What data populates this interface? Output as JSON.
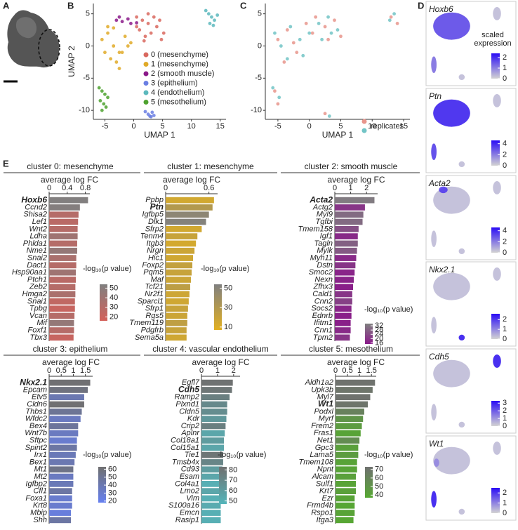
{
  "panel_labels": [
    "A",
    "B",
    "C",
    "D",
    "E"
  ],
  "chart_data": [
    {
      "type": "scatter",
      "xlabel": "UMAP 1",
      "ylabel": "UMAP 2",
      "xlim": [
        -7,
        16
      ],
      "ylim": [
        -11.4,
        6.6
      ],
      "xticks": [
        -5,
        0,
        5,
        10,
        15
      ],
      "yticks": [
        5,
        0,
        -5,
        -10
      ],
      "series": [
        {
          "name": "0 (mesenchyme)",
          "color": "#d9695f",
          "x": [
            0.5,
            1.5,
            2.5,
            3.5,
            4.5,
            5.2,
            1,
            2,
            3,
            4,
            0.5,
            2.5,
            4.8,
            1.8
          ],
          "y": [
            4.5,
            4,
            3.5,
            4.5,
            4,
            2,
            2.5,
            1.5,
            2,
            3,
            3,
            5,
            1,
            0.8
          ]
        },
        {
          "name": "1 (mesenchyme)",
          "color": "#e0aa28",
          "x": [
            -5.5,
            -4.5,
            -3.5,
            -2.5,
            -1.5,
            -0.5,
            -4,
            -3,
            -2,
            -1,
            -4.5,
            -3.5,
            -2.5,
            -5
          ],
          "y": [
            1,
            2,
            0,
            -1,
            1.5,
            0.5,
            -2,
            -2.5,
            -1,
            0,
            3,
            2.8,
            -3.5,
            -1
          ]
        },
        {
          "name": "2 (smooth muscle)",
          "color": "#8b1a89",
          "x": [
            -3,
            -2.5,
            -2,
            -1,
            -0.5,
            0.5
          ],
          "y": [
            4,
            4.5,
            3.8,
            4.2,
            3.5,
            3.6
          ]
        },
        {
          "name": "3 (epithelium)",
          "color": "#6b7fe3",
          "x": [
            2,
            2.5,
            3,
            3.5,
            2.8,
            3.2
          ],
          "y": [
            -10.2,
            -10.6,
            -11,
            -10.8,
            -10.9,
            -10.3
          ]
        },
        {
          "name": "4 (endothelium)",
          "color": "#5cb9bd",
          "x": [
            12.5,
            13,
            13.5,
            14,
            13.2,
            14.5,
            13.8
          ],
          "y": [
            5.5,
            5,
            4.5,
            4,
            3.5,
            4.8,
            3.2
          ]
        },
        {
          "name": "5 (mesothelium)",
          "color": "#4ea22f",
          "x": [
            -6,
            -5.5,
            -5,
            -4.5,
            -5.8,
            -5.2,
            -4.8,
            -5.5
          ],
          "y": [
            -6.5,
            -7,
            -7.5,
            -8,
            -8.5,
            -9,
            -9.5,
            -10
          ]
        }
      ]
    },
    {
      "type": "scatter",
      "xlabel": "UMAP 1",
      "xlim": [
        -7,
        16
      ],
      "ylim": [
        -11.4,
        6.6
      ],
      "xticks": [
        -5,
        0,
        5,
        10,
        15
      ],
      "yticks": [
        5,
        0,
        -5,
        -10
      ],
      "legend_title": "replicates",
      "series": [
        {
          "color": "#e8958c",
          "x": [
            -5,
            -3.5,
            -2,
            -0.5,
            1,
            2.5,
            4,
            5,
            -4,
            -2.5,
            0.5,
            3,
            13,
            14,
            2.5,
            -5.5,
            -5
          ],
          "y": [
            1,
            2.5,
            -1,
            3.5,
            4.5,
            3,
            4,
            1.5,
            -2.5,
            0.5,
            2,
            1,
            4.5,
            3.5,
            -10.5,
            -7,
            -9
          ]
        },
        {
          "color": "#72c4c6",
          "x": [
            -4.5,
            -3,
            -1.5,
            0,
            1.5,
            3,
            4.5,
            -5.5,
            -3.5,
            -1,
            2,
            3.5,
            13.5,
            12.8,
            3.2,
            -4.8,
            -5.8
          ],
          "y": [
            0,
            3,
            1,
            2,
            3.5,
            4.5,
            2.5,
            2,
            -2,
            -1.5,
            1,
            2,
            5,
            4,
            -10.9,
            -8,
            -6.5
          ]
        }
      ]
    },
    {
      "type": "bar",
      "title": "cluster 0: mesenchyme",
      "xlabel": "average log FC",
      "colorbar_title": "-log₁₀(p value)",
      "categories": [
        "Hoxb6",
        "Ccnd2",
        "Shisa2",
        "Lef1",
        "Wnt2",
        "Ldha",
        "Phlda1",
        "Nme1",
        "Snai2",
        "Dact1",
        "Hsp90aa1",
        "Ptch1",
        "Zeb2",
        "Hmga2",
        "Snai1",
        "Tpbg",
        "Vcan",
        "Mif",
        "Foxf1",
        "Tbx3"
      ],
      "values": [
        0.86,
        0.68,
        0.65,
        0.64,
        0.63,
        0.63,
        0.62,
        0.62,
        0.6,
        0.6,
        0.59,
        0.59,
        0.58,
        0.58,
        0.57,
        0.57,
        0.56,
        0.55,
        0.55,
        0.54
      ],
      "pvalues": [
        53,
        52,
        30,
        28,
        30,
        40,
        30,
        45,
        35,
        30,
        40,
        28,
        30,
        35,
        25,
        22,
        30,
        45,
        30,
        22
      ],
      "bold_index": 0,
      "xlim": [
        0,
        0.9
      ],
      "xticks": [
        0,
        0.4,
        0.8
      ],
      "clim": [
        16,
        54
      ],
      "cticks": [
        50,
        40,
        30,
        20
      ],
      "color": "#d4605a",
      "color_high": "#808080"
    },
    {
      "type": "bar",
      "title": "cluster 1: mesenchyme",
      "xlabel": "average log FC",
      "colorbar_title": "-log₁₀(p value)",
      "categories": [
        "Ppbp",
        "Ptn",
        "Igfbp5",
        "Dlk1",
        "Sfrp2",
        "Tenm4",
        "Itgb3",
        "Nrgn",
        "Hic1",
        "Foxp2",
        "Pqm5",
        "Maf",
        "Tcf21",
        "Nr2f1",
        "Sparcl1",
        "Sfrp1",
        "Rgs5",
        "Tmem119",
        "Pdgfrb",
        "Sema5a"
      ],
      "values": [
        0.67,
        0.65,
        0.6,
        0.56,
        0.5,
        0.44,
        0.42,
        0.4,
        0.38,
        0.37,
        0.36,
        0.35,
        0.34,
        0.33,
        0.32,
        0.31,
        0.3,
        0.3,
        0.29,
        0.29
      ],
      "pvalues": [
        15,
        30,
        48,
        52,
        15,
        20,
        14,
        18,
        16,
        22,
        20,
        18,
        25,
        17,
        16,
        20,
        18,
        24,
        20,
        16
      ],
      "bold_index": 1,
      "xlim": [
        0,
        0.72
      ],
      "xticks": [
        0,
        0.6
      ],
      "clim": [
        7,
        54
      ],
      "cticks": [
        50,
        30,
        10
      ],
      "color": "#e2b021",
      "color_high": "#808080"
    },
    {
      "type": "bar",
      "title": "cluster 2: smooth muscle",
      "xlabel": "average log FC",
      "colorbar_title": "-log₁₀(p value)",
      "categories": [
        "Acta2",
        "Actg2",
        "Myl9",
        "Tgfbi",
        "Tmem158",
        "Igf1",
        "Tagln",
        "Mylk",
        "Myh11",
        "Dstn",
        "Smoc2",
        "Nexn",
        "Zfhx3",
        "Cald1",
        "Cnn2",
        "Socs2",
        "Ednrb",
        "Ifitm1",
        "Cnn1",
        "Tpm2"
      ],
      "values": [
        2.5,
        1.9,
        1.8,
        1.75,
        1.5,
        1.45,
        1.45,
        1.4,
        1.35,
        1.3,
        1.25,
        1.2,
        1.15,
        1.1,
        1.1,
        1.05,
        1.05,
        1.0,
        1.0,
        0.95
      ],
      "pvalues": [
        33,
        20,
        30,
        30,
        25,
        18,
        28,
        27,
        18,
        20,
        17,
        17,
        16,
        20,
        22,
        17,
        16,
        16,
        18,
        20
      ],
      "bold_index": 0,
      "xlim": [
        0,
        2.7
      ],
      "xticks": [
        0,
        1,
        2
      ],
      "clim": [
        15,
        34
      ],
      "cticks": [
        32,
        28,
        24,
        20,
        16
      ],
      "color": "#8a1a8a",
      "color_high": "#808080"
    },
    {
      "type": "bar",
      "title": "cluster 3: epithelium",
      "xlabel": "average log FC",
      "colorbar_title": "-log₁₀(p value)",
      "categories": [
        "Nkx2.1",
        "Epcam",
        "Etv5",
        "Cldn6",
        "Thbs1",
        "Wfdc2",
        "Bex4",
        "Wnt7b",
        "Sftpc",
        "Spint2",
        "Irx1",
        "Bex1",
        "Mt1",
        "Mt2",
        "Igfbp2",
        "Cfl1",
        "Foxa1",
        "Krt8",
        "Mbip",
        "Shh"
      ],
      "values": [
        1.7,
        1.6,
        1.45,
        1.45,
        1.35,
        1.3,
        1.2,
        1.2,
        1.15,
        1.15,
        1.1,
        1.05,
        1.0,
        1.0,
        1.0,
        0.95,
        0.95,
        0.95,
        0.9,
        0.9
      ],
      "pvalues": [
        62,
        58,
        40,
        62,
        50,
        35,
        48,
        35,
        30,
        45,
        38,
        40,
        55,
        35,
        38,
        45,
        30,
        30,
        25,
        45
      ],
      "bold_index": 0,
      "xlim": [
        0,
        1.8
      ],
      "xticks": [
        0,
        0.5,
        1,
        1.5
      ],
      "clim": [
        18,
        63
      ],
      "cticks": [
        60,
        50,
        40,
        30,
        20
      ],
      "color": "#6680f0",
      "color_high": "#707070"
    },
    {
      "type": "bar",
      "title": "cluster 4: vascular endothelium",
      "xlabel": "average log FC",
      "colorbar_title": "-log₁₀(p value)",
      "categories": [
        "Egfl7",
        "Cdh5",
        "Ramp2",
        "Plxnd1",
        "Cldn5",
        "Kdr",
        "Crip2",
        "Aplnr",
        "Col18a1",
        "Col15a1",
        "Tie1",
        "Tmsb4x",
        "Cd93",
        "Esam",
        "Col4a1",
        "Lmo2",
        "Vim",
        "S100a16",
        "Emcn",
        "Rasip1"
      ],
      "values": [
        1.95,
        1.9,
        1.75,
        1.6,
        1.6,
        1.55,
        1.5,
        1.45,
        1.4,
        1.4,
        1.35,
        1.35,
        1.3,
        1.3,
        1.3,
        1.25,
        1.25,
        1.2,
        1.2,
        1.2
      ],
      "pvalues": [
        82,
        80,
        75,
        70,
        68,
        62,
        75,
        55,
        60,
        55,
        80,
        72,
        60,
        55,
        50,
        55,
        50,
        52,
        50,
        50
      ],
      "bold_index": 1,
      "xlim": [
        0,
        2.4
      ],
      "xticks": [
        0,
        1,
        2
      ],
      "clim": [
        47,
        83
      ],
      "cticks": [
        80,
        70,
        60,
        50
      ],
      "color": "#55b5ba",
      "color_high": "#707070"
    },
    {
      "type": "bar",
      "title": "cluster 5: mesothelium",
      "xlabel": "average log FC",
      "colorbar_title": "-log₁₀(p value)",
      "categories": [
        "Aldh1a2",
        "Upk3b",
        "Myl7",
        "Wt1",
        "Podxl",
        "Myrf",
        "Frem2",
        "Fras1",
        "Net1",
        "Gpc3",
        "Lama5",
        "Tmem108",
        "Npnt",
        "Alcam",
        "Sulf1",
        "Krt7",
        "Ezr",
        "Frmd4b",
        "Rspo1",
        "Itga3"
      ],
      "values": [
        1.65,
        1.55,
        1.45,
        1.35,
        1.2,
        1.15,
        1.1,
        1.05,
        1.0,
        0.95,
        0.95,
        0.9,
        0.9,
        0.85,
        0.85,
        0.85,
        0.8,
        0.8,
        0.8,
        0.75
      ],
      "pvalues": [
        72,
        70,
        72,
        70,
        62,
        50,
        45,
        40,
        55,
        42,
        45,
        40,
        40,
        42,
        40,
        42,
        40,
        38,
        40,
        38
      ],
      "bold_index": 3,
      "xlim": [
        0,
        1.7
      ],
      "xticks": [
        0,
        0.5,
        1,
        1.5
      ],
      "clim": [
        37,
        73
      ],
      "cticks": [
        70,
        60,
        50,
        40
      ],
      "color": "#56a832",
      "color_high": "#707070"
    },
    {
      "type": "feature",
      "title": "Hoxb6",
      "colorbar_title": "scaled expression",
      "clim": [
        0,
        2.4
      ],
      "cticks": [
        0,
        1,
        2
      ],
      "color_low": "#d3d3d3",
      "color_high": "#2a0cf5"
    },
    {
      "type": "feature",
      "title": "Ptn",
      "clim": [
        0,
        4.6
      ],
      "cticks": [
        0,
        2,
        4
      ],
      "color_low": "#d3d3d3",
      "color_high": "#2a0cf5"
    },
    {
      "type": "feature",
      "title": "Acta2",
      "clim": [
        0,
        4.6
      ],
      "cticks": [
        0,
        2,
        4
      ],
      "color_low": "#d3d3d3",
      "color_high": "#2a0cf5"
    },
    {
      "type": "feature",
      "title": "Nkx2.1",
      "clim": [
        0,
        2.6
      ],
      "cticks": [
        0,
        1,
        2
      ],
      "color_low": "#d3d3d3",
      "color_high": "#2a0cf5"
    },
    {
      "type": "feature",
      "title": "Cdh5",
      "clim": [
        0,
        3.3
      ],
      "cticks": [
        0,
        1,
        2,
        3
      ],
      "color_low": "#d3d3d3",
      "color_high": "#2a0cf5"
    },
    {
      "type": "feature",
      "title": "Wt1",
      "clim": [
        0,
        2.5
      ],
      "cticks": [
        0,
        1,
        2
      ],
      "color_low": "#d3d3d3",
      "color_high": "#2a0cf5"
    }
  ]
}
